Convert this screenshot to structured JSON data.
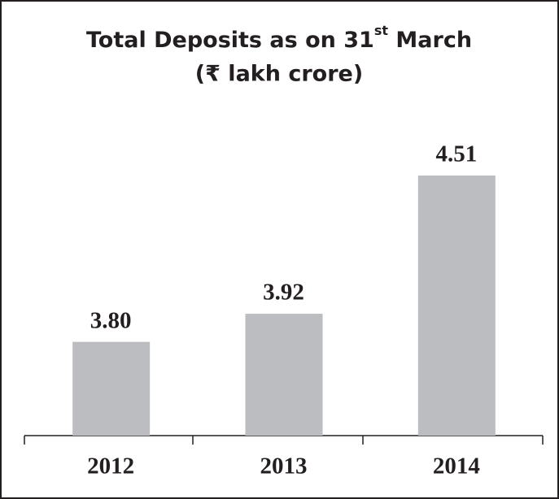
{
  "chart_data": {
    "type": "bar",
    "title": [
      "Total Deposits as on 31",
      "st",
      " March"
    ],
    "subtitle": "(₹ lakh crore)",
    "categories": [
      "2012",
      "2013",
      "2014"
    ],
    "values": [
      3.8,
      3.92,
      4.51
    ],
    "value_labels": [
      "3.80",
      "3.92",
      "4.51"
    ],
    "color": "#bcbdc0",
    "ylim": [
      3.4,
      4.6
    ]
  }
}
